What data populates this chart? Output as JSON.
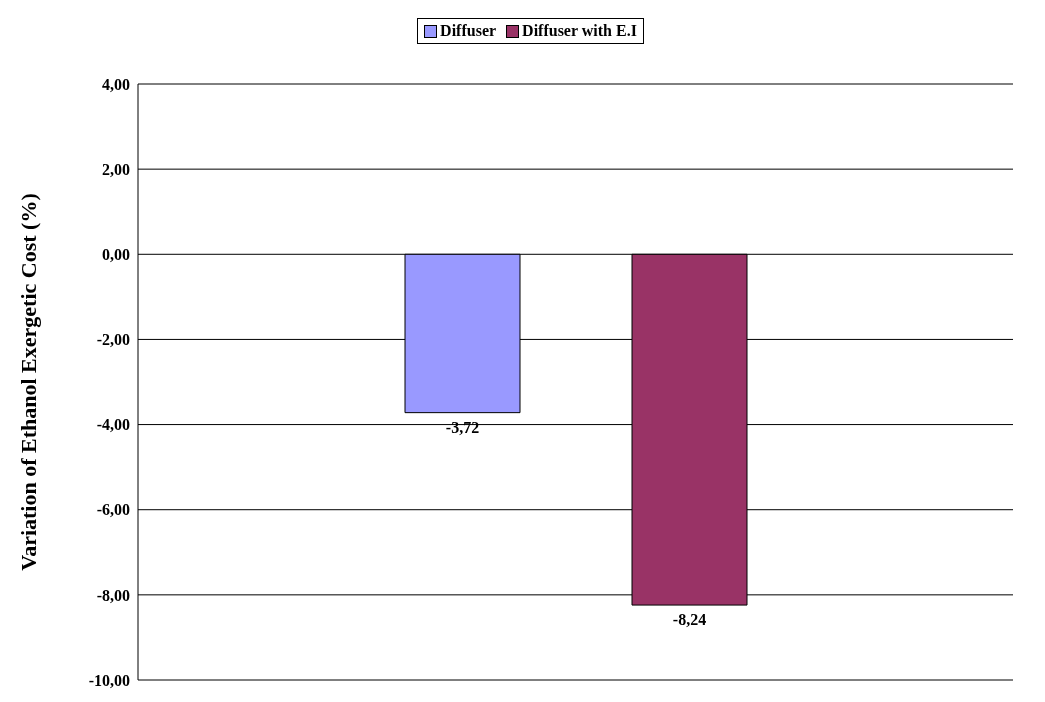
{
  "chart_data": {
    "type": "bar",
    "ylabel": "Variation of Ethanol Exergetic Cost (%)",
    "categories": [
      null
    ],
    "series": [
      {
        "name": "Diffuser",
        "color": "#9999ff",
        "values": [
          -3.72
        ],
        "value_labels": [
          "-3,72"
        ]
      },
      {
        "name": "Diffuser with E.I",
        "color": "#993366",
        "values": [
          -8.24
        ],
        "value_labels": [
          "-8,24"
        ]
      }
    ],
    "ylim": [
      -10,
      4
    ],
    "yticks": [
      {
        "value": -10,
        "label": "-10,00"
      },
      {
        "value": -8,
        "label": "-8,00"
      },
      {
        "value": -6,
        "label": "-6,00"
      },
      {
        "value": -4,
        "label": "-4,00"
      },
      {
        "value": -2,
        "label": "-2,00"
      },
      {
        "value": 0,
        "label": "0,00"
      },
      {
        "value": 2,
        "label": "2,00"
      },
      {
        "value": 4,
        "label": "4,00"
      }
    ],
    "grid": "y",
    "legend": "top"
  }
}
